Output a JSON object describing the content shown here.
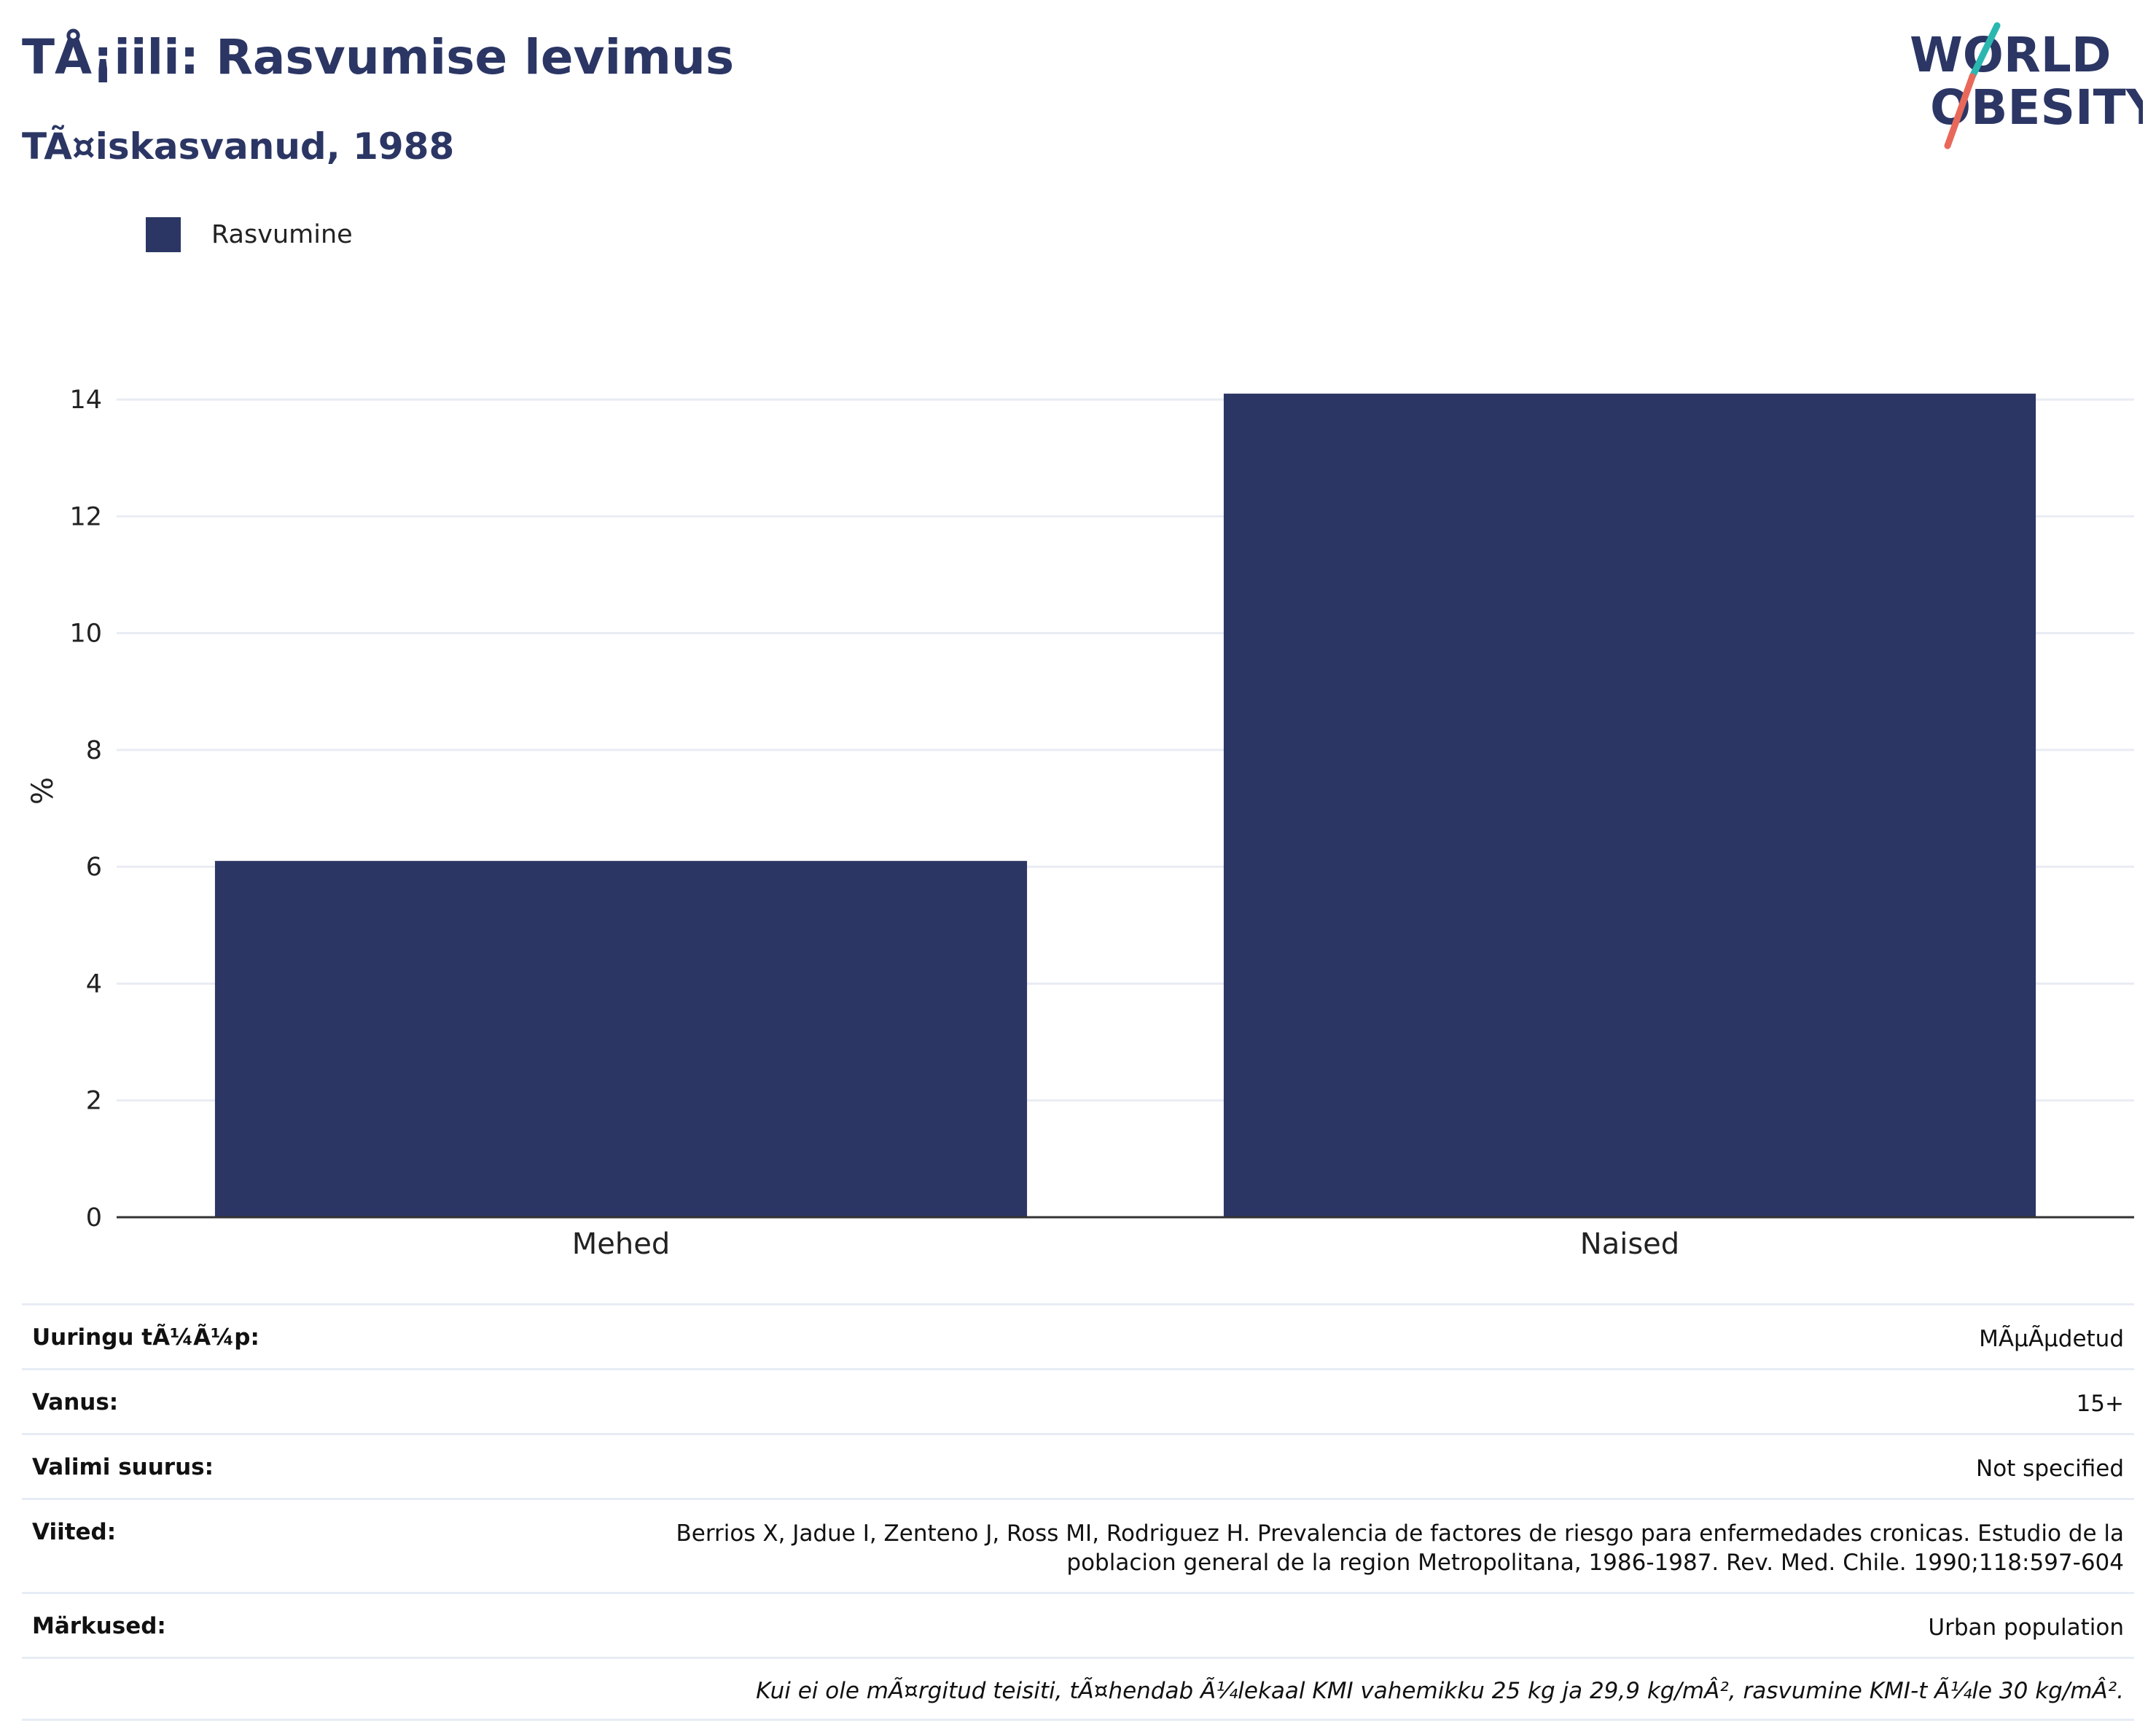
{
  "header": {
    "title": "TÅ¡iili: Rasvumise levimus",
    "subtitle": "TÃ¤iskasvanud, 1988"
  },
  "logo": {
    "line1": "WORLD",
    "line2": "OBESITY",
    "colors": {
      "text": "#2b3664",
      "slash_top": "#2ab7b0",
      "slash_bottom": "#e8695a"
    }
  },
  "legend": {
    "label": "Rasvumine",
    "color": "#2b3664"
  },
  "chart_data": {
    "type": "bar",
    "categories": [
      "Mehed",
      "Naised"
    ],
    "series": [
      {
        "name": "Rasvumine",
        "values": [
          6.1,
          14.1
        ],
        "color": "#2b3664"
      }
    ],
    "ylabel": "%",
    "ylim": [
      0,
      14.6
    ],
    "yticks": [
      0,
      2,
      4,
      6,
      8,
      10,
      12,
      14
    ],
    "grid": true
  },
  "info": {
    "rows": [
      {
        "key": "Uuringu tÃ¼Ã¼p:",
        "value": "MÃµÃµdetud"
      },
      {
        "key": "Vanus:",
        "value": "15+"
      },
      {
        "key": "Valimi suurus:",
        "value": "Not specified"
      },
      {
        "key": "Viited:",
        "value": "Berrios X, Jadue I, Zenteno J, Ross MI, Rodriguez H. Prevalencia de factores de riesgo para enfermedades cronicas. Estudio de la poblacion general de la region Metropolitana, 1986-1987. Rev. Med. Chile. 1990;118:597-604"
      },
      {
        "key": "Märkused:",
        "value": "Urban population"
      }
    ],
    "note": "Kui ei ole mÃ¤rgitud teisiti, tÃ¤hendab Ã¼lekaal KMI vahemikku 25 kg ja 29,9 kg/mÂ², rasvumine KMI-t Ã¼le 30 kg/mÂ²."
  }
}
